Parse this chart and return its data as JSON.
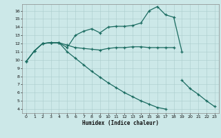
{
  "xlabel": "Humidex (Indice chaleur)",
  "background_color": "#cce8e8",
  "line_color": "#1a6b60",
  "grid_color": "#aacccc",
  "xlim": [
    -0.5,
    23.5
  ],
  "ylim": [
    3.5,
    16.8
  ],
  "xticks": [
    0,
    1,
    2,
    3,
    4,
    5,
    6,
    7,
    8,
    9,
    10,
    11,
    12,
    13,
    14,
    15,
    16,
    17,
    18,
    19,
    20,
    21,
    22,
    23
  ],
  "yticks": [
    4,
    5,
    6,
    7,
    8,
    9,
    10,
    11,
    12,
    13,
    14,
    15,
    16
  ],
  "line1_x": [
    0,
    1,
    2,
    3,
    4,
    5,
    6,
    7,
    8,
    9,
    10,
    11,
    12,
    13,
    14,
    15,
    16,
    17,
    18,
    19
  ],
  "line1_y": [
    9.8,
    11.1,
    12.0,
    12.1,
    12.1,
    11.5,
    13.0,
    13.5,
    13.8,
    13.3,
    14.0,
    14.1,
    14.1,
    14.2,
    14.5,
    16.0,
    16.5,
    15.5,
    15.2,
    11.0
  ],
  "line2_x": [
    0,
    1,
    2,
    3,
    4,
    5,
    6,
    7,
    8,
    9,
    10,
    11,
    12,
    13,
    14,
    15,
    16,
    17,
    18
  ],
  "line2_y": [
    9.8,
    11.1,
    12.0,
    12.1,
    12.1,
    11.8,
    11.5,
    11.4,
    11.3,
    11.2,
    11.4,
    11.5,
    11.5,
    11.6,
    11.6,
    11.5,
    11.5,
    11.5,
    11.5
  ],
  "line3_seg1_x": [
    0,
    1,
    2,
    3,
    4,
    5,
    6,
    7,
    8,
    9,
    10,
    11,
    12,
    13,
    14,
    15,
    16,
    17
  ],
  "line3_seg1_y": [
    9.8,
    11.1,
    12.0,
    12.1,
    12.1,
    11.0,
    10.2,
    9.4,
    8.6,
    7.9,
    7.2,
    6.6,
    6.0,
    5.5,
    5.0,
    4.6,
    4.2,
    4.0
  ],
  "line3_seg2_x": [
    19,
    20,
    21,
    22,
    23
  ],
  "line3_seg2_y": [
    7.5,
    6.5,
    5.8,
    5.0,
    4.3
  ]
}
